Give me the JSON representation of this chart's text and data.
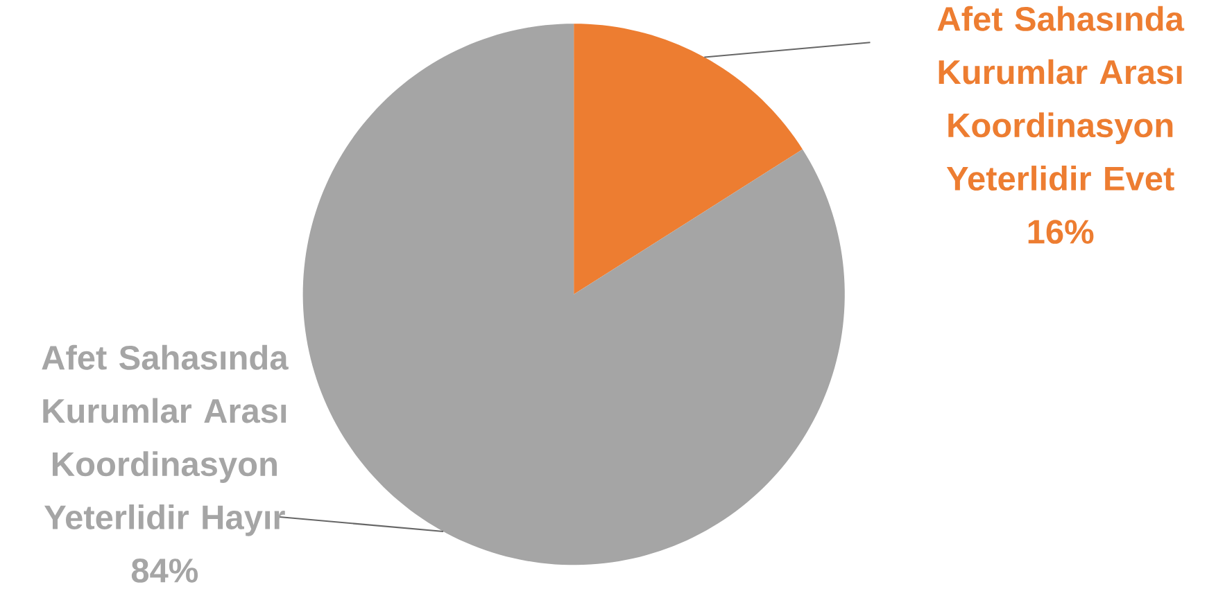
{
  "chart_data": {
    "type": "pie",
    "categories": [
      "Afet Sahasında Kurumlar Arası Koordinasyon Yeterlidir Evet",
      "Afet Sahasında Kurumlar Arası Koordinasyon Yeterlidir Hayır"
    ],
    "values": [
      16,
      84
    ],
    "value_labels": [
      "16%",
      "84%"
    ],
    "colors": [
      "#ed7d31",
      "#a5a5a5"
    ]
  }
}
